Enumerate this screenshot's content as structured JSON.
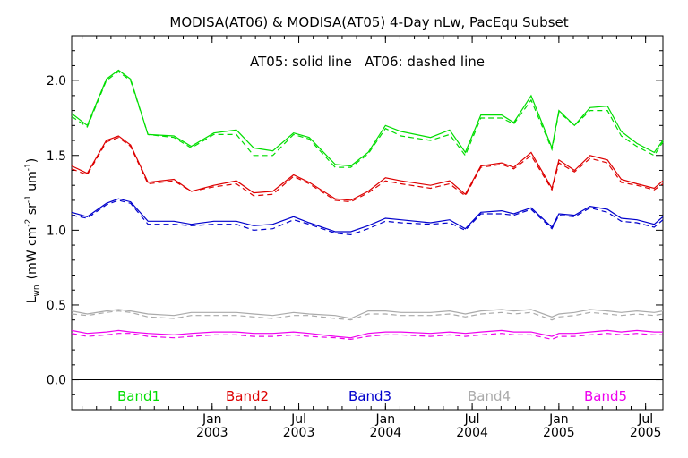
{
  "chart_data": {
    "type": "line",
    "title": "MODISA(AT06) & MODISA(AT05) 4-Day nLw, PacEqu Subset",
    "annotation": "AT05: solid line   AT06: dashed line",
    "ylabel": {
      "main": "L",
      "sub": "wn",
      "units_prefix": "(mW cm",
      "exp1": "-2",
      "units_mid": " sr",
      "exp2": "-1",
      "units_suffix": " um",
      "exp3": "-1",
      "close": ")"
    },
    "xlabel": "",
    "ylim": [
      -0.2,
      2.3
    ],
    "xlim": [
      2002.19,
      2005.6
    ],
    "grid": false,
    "y_ticks": [
      {
        "value": 0.0,
        "label": "0.0"
      },
      {
        "value": 0.5,
        "label": "0.5"
      },
      {
        "value": 1.0,
        "label": "1.0"
      },
      {
        "value": 1.5,
        "label": "1.5"
      },
      {
        "value": 2.0,
        "label": "2.0"
      }
    ],
    "x_ticks": [
      {
        "value": 2003.0,
        "label": [
          "Jan",
          "2003"
        ]
      },
      {
        "value": 2003.5,
        "label": [
          "Jul",
          "2003"
        ]
      },
      {
        "value": 2004.0,
        "label": [
          "Jan",
          "2004"
        ]
      },
      {
        "value": 2004.5,
        "label": [
          "Jul",
          "2004"
        ]
      },
      {
        "value": 2005.0,
        "label": [
          "Jan",
          "2005"
        ]
      },
      {
        "value": 2005.5,
        "label": [
          "Jul",
          "2005"
        ]
      }
    ],
    "line_styles": {
      "AT05": "solid",
      "AT06": "dashed"
    },
    "x": [
      2002.19,
      2002.28,
      2002.39,
      2002.46,
      2002.53,
      2002.63,
      2002.78,
      2002.88,
      2003.01,
      2003.14,
      2003.24,
      2003.35,
      2003.47,
      2003.56,
      2003.71,
      2003.8,
      2003.9,
      2004.0,
      2004.09,
      2004.26,
      2004.37,
      2004.46,
      2004.55,
      2004.67,
      2004.74,
      2004.84,
      2004.96,
      2005.0,
      2005.09,
      2005.18,
      2005.28,
      2005.36,
      2005.45,
      2005.55,
      2005.6
    ],
    "series": [
      {
        "name": "Band1",
        "color": "#00dd00",
        "AT05": [
          1.78,
          1.7,
          2.01,
          2.07,
          2.01,
          1.64,
          1.63,
          1.56,
          1.65,
          1.67,
          1.55,
          1.53,
          1.65,
          1.62,
          1.44,
          1.43,
          1.52,
          1.7,
          1.66,
          1.62,
          1.67,
          1.52,
          1.77,
          1.77,
          1.72,
          1.9,
          1.55,
          1.8,
          1.7,
          1.82,
          1.83,
          1.66,
          1.58,
          1.52,
          1.6
        ],
        "AT06": [
          1.76,
          1.69,
          2.0,
          2.06,
          2.0,
          1.64,
          1.62,
          1.55,
          1.64,
          1.64,
          1.5,
          1.5,
          1.64,
          1.61,
          1.42,
          1.42,
          1.51,
          1.68,
          1.63,
          1.6,
          1.64,
          1.5,
          1.75,
          1.75,
          1.71,
          1.87,
          1.54,
          1.79,
          1.7,
          1.8,
          1.8,
          1.63,
          1.56,
          1.5,
          1.59
        ]
      },
      {
        "name": "Band2",
        "color": "#dd0000",
        "AT05": [
          1.43,
          1.38,
          1.6,
          1.63,
          1.57,
          1.32,
          1.34,
          1.26,
          1.3,
          1.33,
          1.25,
          1.26,
          1.37,
          1.32,
          1.21,
          1.2,
          1.26,
          1.35,
          1.33,
          1.3,
          1.33,
          1.24,
          1.43,
          1.45,
          1.42,
          1.52,
          1.28,
          1.47,
          1.4,
          1.5,
          1.47,
          1.34,
          1.31,
          1.28,
          1.33
        ],
        "AT06": [
          1.41,
          1.37,
          1.59,
          1.62,
          1.56,
          1.31,
          1.33,
          1.26,
          1.29,
          1.31,
          1.23,
          1.24,
          1.36,
          1.31,
          1.2,
          1.19,
          1.25,
          1.33,
          1.31,
          1.28,
          1.31,
          1.23,
          1.42,
          1.44,
          1.41,
          1.5,
          1.27,
          1.45,
          1.39,
          1.48,
          1.45,
          1.32,
          1.3,
          1.27,
          1.31
        ]
      },
      {
        "name": "Band3",
        "color": "#0000cc",
        "AT05": [
          1.12,
          1.09,
          1.18,
          1.21,
          1.19,
          1.06,
          1.06,
          1.04,
          1.06,
          1.06,
          1.03,
          1.04,
          1.09,
          1.05,
          0.99,
          0.99,
          1.03,
          1.08,
          1.07,
          1.05,
          1.07,
          1.01,
          1.12,
          1.13,
          1.11,
          1.15,
          1.02,
          1.11,
          1.1,
          1.16,
          1.14,
          1.08,
          1.07,
          1.04,
          1.09
        ],
        "AT06": [
          1.1,
          1.08,
          1.17,
          1.2,
          1.18,
          1.04,
          1.04,
          1.03,
          1.04,
          1.04,
          1.0,
          1.01,
          1.07,
          1.04,
          0.98,
          0.97,
          1.01,
          1.06,
          1.05,
          1.04,
          1.05,
          1.0,
          1.11,
          1.11,
          1.1,
          1.14,
          1.01,
          1.1,
          1.09,
          1.15,
          1.12,
          1.06,
          1.05,
          1.02,
          1.07
        ]
      },
      {
        "name": "Band4",
        "color": "#aaaaaa",
        "AT05": [
          0.46,
          0.44,
          0.46,
          0.47,
          0.46,
          0.44,
          0.43,
          0.45,
          0.45,
          0.45,
          0.44,
          0.43,
          0.45,
          0.44,
          0.43,
          0.41,
          0.46,
          0.46,
          0.45,
          0.45,
          0.46,
          0.44,
          0.46,
          0.47,
          0.46,
          0.47,
          0.42,
          0.44,
          0.45,
          0.47,
          0.46,
          0.45,
          0.46,
          0.45,
          0.46
        ],
        "AT06": [
          0.44,
          0.43,
          0.45,
          0.46,
          0.45,
          0.42,
          0.41,
          0.43,
          0.43,
          0.43,
          0.42,
          0.41,
          0.43,
          0.43,
          0.41,
          0.4,
          0.44,
          0.44,
          0.43,
          0.43,
          0.44,
          0.42,
          0.44,
          0.45,
          0.44,
          0.45,
          0.4,
          0.42,
          0.43,
          0.45,
          0.44,
          0.43,
          0.44,
          0.43,
          0.44
        ]
      },
      {
        "name": "Band5",
        "color": "#ee00ee",
        "AT05": [
          0.33,
          0.31,
          0.32,
          0.33,
          0.32,
          0.31,
          0.3,
          0.31,
          0.32,
          0.32,
          0.31,
          0.31,
          0.32,
          0.31,
          0.29,
          0.28,
          0.31,
          0.32,
          0.32,
          0.31,
          0.32,
          0.31,
          0.32,
          0.33,
          0.32,
          0.32,
          0.29,
          0.31,
          0.31,
          0.32,
          0.33,
          0.32,
          0.33,
          0.32,
          0.32
        ],
        "AT06": [
          0.31,
          0.29,
          0.3,
          0.31,
          0.31,
          0.29,
          0.28,
          0.29,
          0.3,
          0.3,
          0.29,
          0.29,
          0.3,
          0.29,
          0.28,
          0.27,
          0.29,
          0.3,
          0.3,
          0.29,
          0.3,
          0.29,
          0.3,
          0.31,
          0.3,
          0.3,
          0.27,
          0.29,
          0.29,
          0.3,
          0.31,
          0.3,
          0.31,
          0.3,
          0.3
        ]
      }
    ]
  }
}
